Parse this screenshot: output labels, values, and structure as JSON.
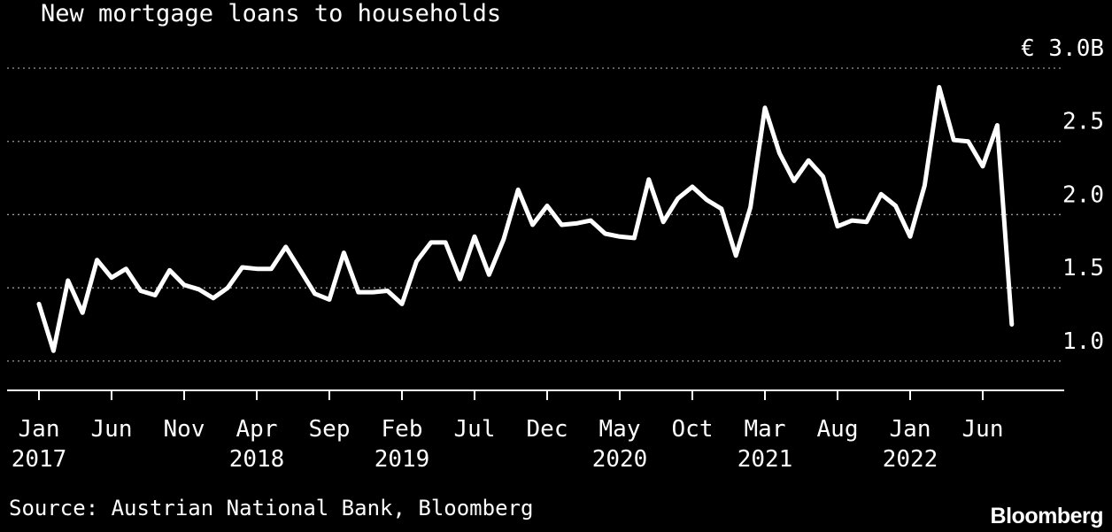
{
  "chart_data": {
    "type": "line",
    "title": "New mortgage loans to households",
    "y_unit_label": "€ 3.0B",
    "ylim": [
      0.8,
      3.0
    ],
    "y_ticks": [
      {
        "value": 3.0,
        "label": "€ 3.0B"
      },
      {
        "value": 2.5,
        "label": "2.5"
      },
      {
        "value": 2.0,
        "label": "2.0"
      },
      {
        "value": 1.5,
        "label": "1.5"
      },
      {
        "value": 1.0,
        "label": "1.0"
      }
    ],
    "x_ticks": [
      {
        "index": 0,
        "label": "Jan",
        "year": "2017"
      },
      {
        "index": 5,
        "label": "Jun",
        "year": ""
      },
      {
        "index": 10,
        "label": "Nov",
        "year": ""
      },
      {
        "index": 15,
        "label": "Apr",
        "year": "2018"
      },
      {
        "index": 20,
        "label": "Sep",
        "year": ""
      },
      {
        "index": 25,
        "label": "Feb",
        "year": "2019"
      },
      {
        "index": 30,
        "label": "Jul",
        "year": ""
      },
      {
        "index": 35,
        "label": "Dec",
        "year": ""
      },
      {
        "index": 40,
        "label": "May",
        "year": "2020"
      },
      {
        "index": 45,
        "label": "Oct",
        "year": ""
      },
      {
        "index": 50,
        "label": "Mar",
        "year": "2021"
      },
      {
        "index": 55,
        "label": "Aug",
        "year": ""
      },
      {
        "index": 60,
        "label": "Jan",
        "year": "2022"
      },
      {
        "index": 65,
        "label": "Jun",
        "year": ""
      }
    ],
    "grid": true,
    "series": [
      {
        "start": "2017-01",
        "frequency": "monthly",
        "values": [
          1.39,
          1.07,
          1.55,
          1.33,
          1.69,
          1.57,
          1.63,
          1.48,
          1.45,
          1.62,
          1.52,
          1.49,
          1.43,
          1.5,
          1.64,
          1.63,
          1.63,
          1.78,
          1.62,
          1.46,
          1.42,
          1.74,
          1.47,
          1.47,
          1.48,
          1.39,
          1.68,
          1.81,
          1.81,
          1.56,
          1.85,
          1.59,
          1.83,
          2.17,
          1.93,
          2.06,
          1.93,
          1.94,
          1.96,
          1.87,
          1.85,
          1.84,
          2.24,
          1.95,
          2.11,
          2.19,
          2.1,
          2.04,
          1.72,
          2.05,
          2.73,
          2.42,
          2.23,
          2.37,
          2.26,
          1.92,
          1.96,
          1.95,
          2.14,
          2.06,
          1.85,
          2.2,
          2.87,
          2.51,
          2.5,
          2.33,
          2.61,
          1.25
        ]
      }
    ]
  },
  "source": "Source: Austrian National Bank, Bloomberg",
  "brand": "Bloomberg"
}
